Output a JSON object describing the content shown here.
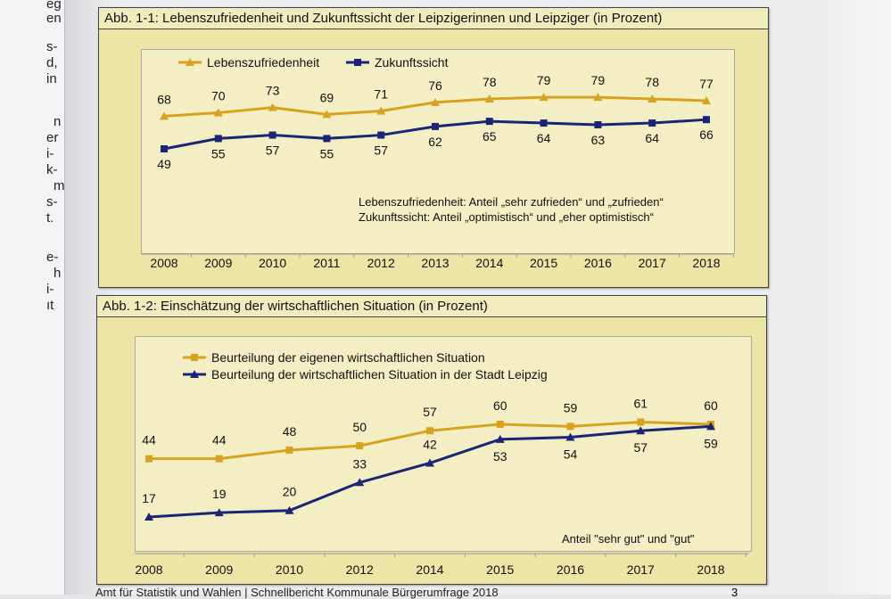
{
  "left_page_fragments": [
    "eg",
    "en",
    "s-",
    "d,",
    "in",
    "n",
    "er",
    "i-",
    "k-",
    "m",
    "s-",
    "t.",
    "e-",
    "h",
    "i-",
    "ıt"
  ],
  "footer": {
    "text": "Amt für Statistik und Wahlen | Schnellbericht Kommunale Bürgerumfrage 2018",
    "page": "3"
  },
  "colors": {
    "orange": "#d9a21e",
    "navy": "#1c2575"
  },
  "chart_data": [
    {
      "type": "line",
      "title": "Abb. 1-1: Lebenszufriedenheit und Zukunftssicht der Leipzigerinnen und Leipziger (in Prozent)",
      "categories": [
        "2008",
        "2009",
        "2010",
        "2011",
        "2012",
        "2013",
        "2014",
        "2015",
        "2016",
        "2017",
        "2018"
      ],
      "series": [
        {
          "name": "Lebenszufriedenheit",
          "marker": "triangle",
          "color": "#d9a21e",
          "values": [
            68,
            70,
            73,
            69,
            71,
            76,
            78,
            79,
            79,
            78,
            77
          ]
        },
        {
          "name": "Zukunftssicht",
          "marker": "square",
          "color": "#1c2575",
          "values": [
            49,
            55,
            57,
            55,
            57,
            62,
            65,
            64,
            63,
            64,
            66
          ]
        }
      ],
      "notes": [
        "Lebenszufriedenheit: Anteil „sehr zufrieden“ und „zufrieden“",
        "Zukunftssicht: Anteil „optimistisch“ und „eher optimistisch“"
      ],
      "legend": "top-left",
      "grid": false
    },
    {
      "type": "line",
      "title": "Abb. 1-2: Einschätzung der wirtschaftlichen Situation (in Prozent)",
      "categories": [
        "2008",
        "2009",
        "2010",
        "2012",
        "2014",
        "2015",
        "2016",
        "2017",
        "2018"
      ],
      "series": [
        {
          "name": "Beurteilung der eigenen wirtschaftlichen Situation",
          "marker": "square",
          "color": "#d9a21e",
          "values": [
            44,
            44,
            48,
            50,
            57,
            60,
            59,
            61,
            60
          ]
        },
        {
          "name": "Beurteilung der wirtschaftlichen Situation in der Stadt Leipzig",
          "marker": "triangle",
          "color": "#1c2575",
          "values": [
            17,
            19,
            20,
            33,
            42,
            53,
            54,
            57,
            59
          ]
        }
      ],
      "notes": [
        "Anteil \"sehr gut\" und \"gut\""
      ],
      "legend": "top-left",
      "grid": false
    }
  ]
}
